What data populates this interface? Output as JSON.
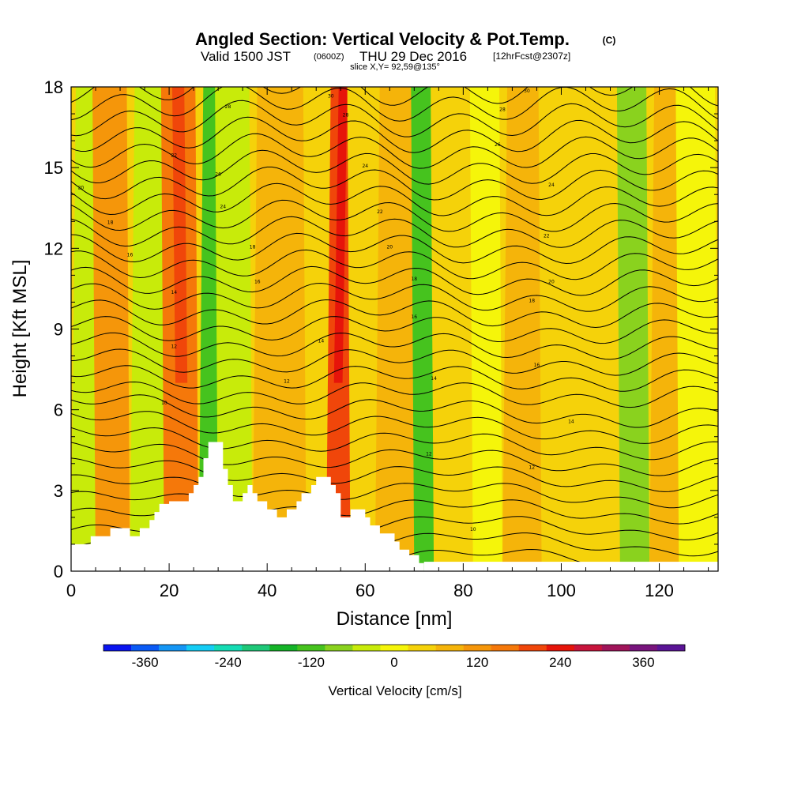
{
  "chart_data": {
    "type": "heatmap",
    "title": "Angled Section: Vertical Velocity & Pot.Temp.",
    "title_unit": "(C)",
    "subtitle_parts": [
      "Valid 1500 JST",
      "(0600Z)",
      "THU 29 Dec 2016",
      "[12hrFcst@2307z]"
    ],
    "slice_label": "slice X,Y= 92,59@135°",
    "xlabel": "Distance [nm]",
    "ylabel": "Height [Kft MSL]",
    "xlim": [
      0,
      132
    ],
    "ylim": [
      0,
      18
    ],
    "x_ticks": [
      "0",
      "20",
      "40",
      "60",
      "80",
      "100",
      "120"
    ],
    "y_ticks": [
      "0",
      "3",
      "6",
      "9",
      "12",
      "15",
      "18"
    ],
    "colorbar": {
      "label": "Vertical Velocity [cm/s]",
      "tick_labels": [
        "-360",
        "-240",
        "-120",
        "0",
        "120",
        "240",
        "360"
      ],
      "colors": [
        "#0a14f0",
        "#0a5af5",
        "#1496f5",
        "#14cdf5",
        "#14dcb4",
        "#1ec878",
        "#14b428",
        "#46c31e",
        "#8ad21e",
        "#c8eb0a",
        "#f5f50a",
        "#f5d20a",
        "#f5b40a",
        "#f5960a",
        "#f5780a",
        "#f0460a",
        "#e6140a",
        "#c8143c",
        "#a0145a",
        "#78147d",
        "#5a1496"
      ]
    },
    "field": {
      "description_columns": "vertical velocity by distance (nm), column bands",
      "bands": [
        {
          "x": [
            0,
            5
          ],
          "value": -40
        },
        {
          "x": [
            5,
            12
          ],
          "value": 100
        },
        {
          "x": [
            12,
            19
          ],
          "value": -40
        },
        {
          "x": [
            19,
            26
          ],
          "value": 170
        },
        {
          "x": [
            26,
            30
          ],
          "value": -130
        },
        {
          "x": [
            30,
            37
          ],
          "value": -60
        },
        {
          "x": [
            37,
            48
          ],
          "value": 90
        },
        {
          "x": [
            48,
            52
          ],
          "value": 40
        },
        {
          "x": [
            52,
            57
          ],
          "value": 200
        },
        {
          "x": [
            57,
            62
          ],
          "value": 40
        },
        {
          "x": [
            62,
            70
          ],
          "value": 60
        },
        {
          "x": [
            70,
            74
          ],
          "value": -110
        },
        {
          "x": [
            74,
            82
          ],
          "value": 40
        },
        {
          "x": [
            82,
            88
          ],
          "value": 0
        },
        {
          "x": [
            88,
            96
          ],
          "value": 70
        },
        {
          "x": [
            96,
            104
          ],
          "value": 20
        },
        {
          "x": [
            104,
            112
          ],
          "value": 40
        },
        {
          "x": [
            112,
            118
          ],
          "value": -90
        },
        {
          "x": [
            118,
            124
          ],
          "value": 60
        },
        {
          "x": [
            124,
            132
          ],
          "value": -20
        }
      ]
    },
    "terrain": [
      [
        0,
        1.0
      ],
      [
        4,
        1.0
      ],
      [
        4,
        1.3
      ],
      [
        8,
        1.3
      ],
      [
        8,
        1.6
      ],
      [
        12,
        1.6
      ],
      [
        12,
        1.3
      ],
      [
        14,
        1.3
      ],
      [
        14,
        1.6
      ],
      [
        16,
        1.6
      ],
      [
        16,
        1.9
      ],
      [
        17,
        1.9
      ],
      [
        17,
        2.2
      ],
      [
        18,
        2.2
      ],
      [
        18,
        2.5
      ],
      [
        20,
        2.5
      ],
      [
        20,
        2.6
      ],
      [
        24,
        2.6
      ],
      [
        24,
        2.9
      ],
      [
        25,
        2.9
      ],
      [
        25,
        3.2
      ],
      [
        26,
        3.2
      ],
      [
        26,
        3.5
      ],
      [
        27,
        3.5
      ],
      [
        27,
        4.2
      ],
      [
        28,
        4.2
      ],
      [
        28,
        4.8
      ],
      [
        31,
        4.8
      ],
      [
        31,
        3.8
      ],
      [
        32,
        3.8
      ],
      [
        32,
        3.2
      ],
      [
        33,
        3.2
      ],
      [
        33,
        2.6
      ],
      [
        35,
        2.6
      ],
      [
        35,
        2.9
      ],
      [
        36,
        2.9
      ],
      [
        36,
        3.2
      ],
      [
        37,
        3.2
      ],
      [
        37,
        2.9
      ],
      [
        38,
        2.9
      ],
      [
        38,
        2.6
      ],
      [
        40,
        2.6
      ],
      [
        40,
        2.3
      ],
      [
        42,
        2.3
      ],
      [
        42,
        2.0
      ],
      [
        44,
        2.0
      ],
      [
        44,
        2.3
      ],
      [
        46,
        2.3
      ],
      [
        46,
        2.6
      ],
      [
        47,
        2.6
      ],
      [
        47,
        2.9
      ],
      [
        49,
        2.9
      ],
      [
        49,
        3.2
      ],
      [
        50,
        3.2
      ],
      [
        50,
        3.5
      ],
      [
        53,
        3.5
      ],
      [
        53,
        3.2
      ],
      [
        54,
        3.2
      ],
      [
        54,
        2.9
      ],
      [
        55,
        2.9
      ],
      [
        55,
        2.0
      ],
      [
        57,
        2.0
      ],
      [
        57,
        2.3
      ],
      [
        60,
        2.3
      ],
      [
        60,
        2.0
      ],
      [
        61,
        2.0
      ],
      [
        61,
        1.7
      ],
      [
        63,
        1.7
      ],
      [
        63,
        1.4
      ],
      [
        66,
        1.4
      ],
      [
        66,
        1.1
      ],
      [
        67,
        1.1
      ],
      [
        67,
        0.8
      ],
      [
        69,
        0.8
      ],
      [
        69,
        0.6
      ],
      [
        71,
        0.6
      ],
      [
        71,
        0.3
      ],
      [
        72,
        0.3
      ],
      [
        72,
        0
      ],
      [
        0,
        0
      ]
    ],
    "isentropes": {
      "count": 30,
      "labels": [
        {
          "x": 2,
          "y": 14.2,
          "text": "20"
        },
        {
          "x": 8,
          "y": 12.9,
          "text": "18"
        },
        {
          "x": 12,
          "y": 11.7,
          "text": "16"
        },
        {
          "x": 21,
          "y": 15.4,
          "text": "22"
        },
        {
          "x": 21,
          "y": 10.3,
          "text": "14"
        },
        {
          "x": 21,
          "y": 8.3,
          "text": "12"
        },
        {
          "x": 19,
          "y": 6.2,
          "text": "10"
        },
        {
          "x": 32,
          "y": 17.2,
          "text": "28"
        },
        {
          "x": 30,
          "y": 14.7,
          "text": "26"
        },
        {
          "x": 31,
          "y": 13.5,
          "text": "24"
        },
        {
          "x": 37,
          "y": 12.0,
          "text": "18"
        },
        {
          "x": 38,
          "y": 10.7,
          "text": "16"
        },
        {
          "x": 44,
          "y": 7.0,
          "text": "12"
        },
        {
          "x": 51,
          "y": 8.5,
          "text": "14"
        },
        {
          "x": 53,
          "y": 17.6,
          "text": "30"
        },
        {
          "x": 56,
          "y": 16.9,
          "text": "28"
        },
        {
          "x": 60,
          "y": 15.0,
          "text": "24"
        },
        {
          "x": 63,
          "y": 13.3,
          "text": "22"
        },
        {
          "x": 65,
          "y": 12.0,
          "text": "20"
        },
        {
          "x": 70,
          "y": 10.8,
          "text": "18"
        },
        {
          "x": 70,
          "y": 9.4,
          "text": "16"
        },
        {
          "x": 74,
          "y": 7.1,
          "text": "14"
        },
        {
          "x": 73,
          "y": 4.3,
          "text": "12"
        },
        {
          "x": 82,
          "y": 1.5,
          "text": "10"
        },
        {
          "x": 93,
          "y": 17.8,
          "text": "30"
        },
        {
          "x": 88,
          "y": 17.1,
          "text": "28"
        },
        {
          "x": 87,
          "y": 15.8,
          "text": "26"
        },
        {
          "x": 98,
          "y": 14.3,
          "text": "24"
        },
        {
          "x": 97,
          "y": 12.4,
          "text": "22"
        },
        {
          "x": 98,
          "y": 10.7,
          "text": "20"
        },
        {
          "x": 94,
          "y": 10.0,
          "text": "18"
        },
        {
          "x": 95,
          "y": 7.6,
          "text": "16"
        },
        {
          "x": 102,
          "y": 5.5,
          "text": "14"
        },
        {
          "x": 94,
          "y": 3.8,
          "text": "12"
        }
      ]
    }
  }
}
